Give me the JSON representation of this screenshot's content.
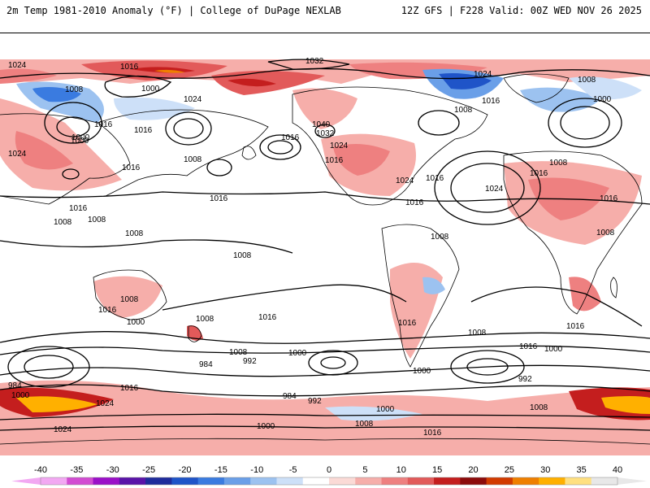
{
  "header": {
    "title_left": "2m Temp 1981-2010 Anomaly (°F) | College of DuPage NEXLAB",
    "title_right": "12Z GFS | F228 Valid: 00Z WED NOV 26 2025"
  },
  "map": {
    "isobar_labels": [
      "1024",
      "1016",
      "1000",
      "1032",
      "1024",
      "1008",
      "1000",
      "1008",
      "1016",
      "1024",
      "1016",
      "1016",
      "1040",
      "1032",
      "1000",
      "1024",
      "1016",
      "1016",
      "1008",
      "1024",
      "1016",
      "1024",
      "1016",
      "1016",
      "1016",
      "1008",
      "1008",
      "1008",
      "1016",
      "1008",
      "1024",
      "1016",
      "1008",
      "1016",
      "1008",
      "1008",
      "1008",
      "1008",
      "1000",
      "1016",
      "1016",
      "1000",
      "1016",
      "1008",
      "984",
      "992",
      "1000",
      "1008",
      "1016",
      "984",
      "992",
      "1000",
      "992",
      "1008",
      "1000",
      "1008",
      "984",
      "1000",
      "1016",
      "1024",
      "1024",
      "1000",
      "1008",
      "1000",
      "1016",
      "1016"
    ]
  },
  "legend": {
    "ticks": [
      "-40",
      "-35",
      "-30",
      "-25",
      "-20",
      "-15",
      "-10",
      "-5",
      "0",
      "5",
      "10",
      "15",
      "20",
      "25",
      "30",
      "35",
      "40"
    ],
    "colors": [
      "#f2a8f2",
      "#d24cd2",
      "#9b10c8",
      "#5a13a8",
      "#1f2c9c",
      "#1f54c8",
      "#3a7be0",
      "#6a9fe8",
      "#9cc2f0",
      "#cde0f8",
      "#ffffff",
      "#fbdad6",
      "#f6aeaa",
      "#ee8080",
      "#e25a5a",
      "#c41e1e",
      "#8c0b0b",
      "#d23b00",
      "#ef7f00",
      "#ffb000",
      "#ffe080",
      "#e8e8e8"
    ]
  },
  "colors": {
    "warm": "#ee8080",
    "cool": "#6a9fe8",
    "isobar": "#000000",
    "coast": "#000000"
  }
}
